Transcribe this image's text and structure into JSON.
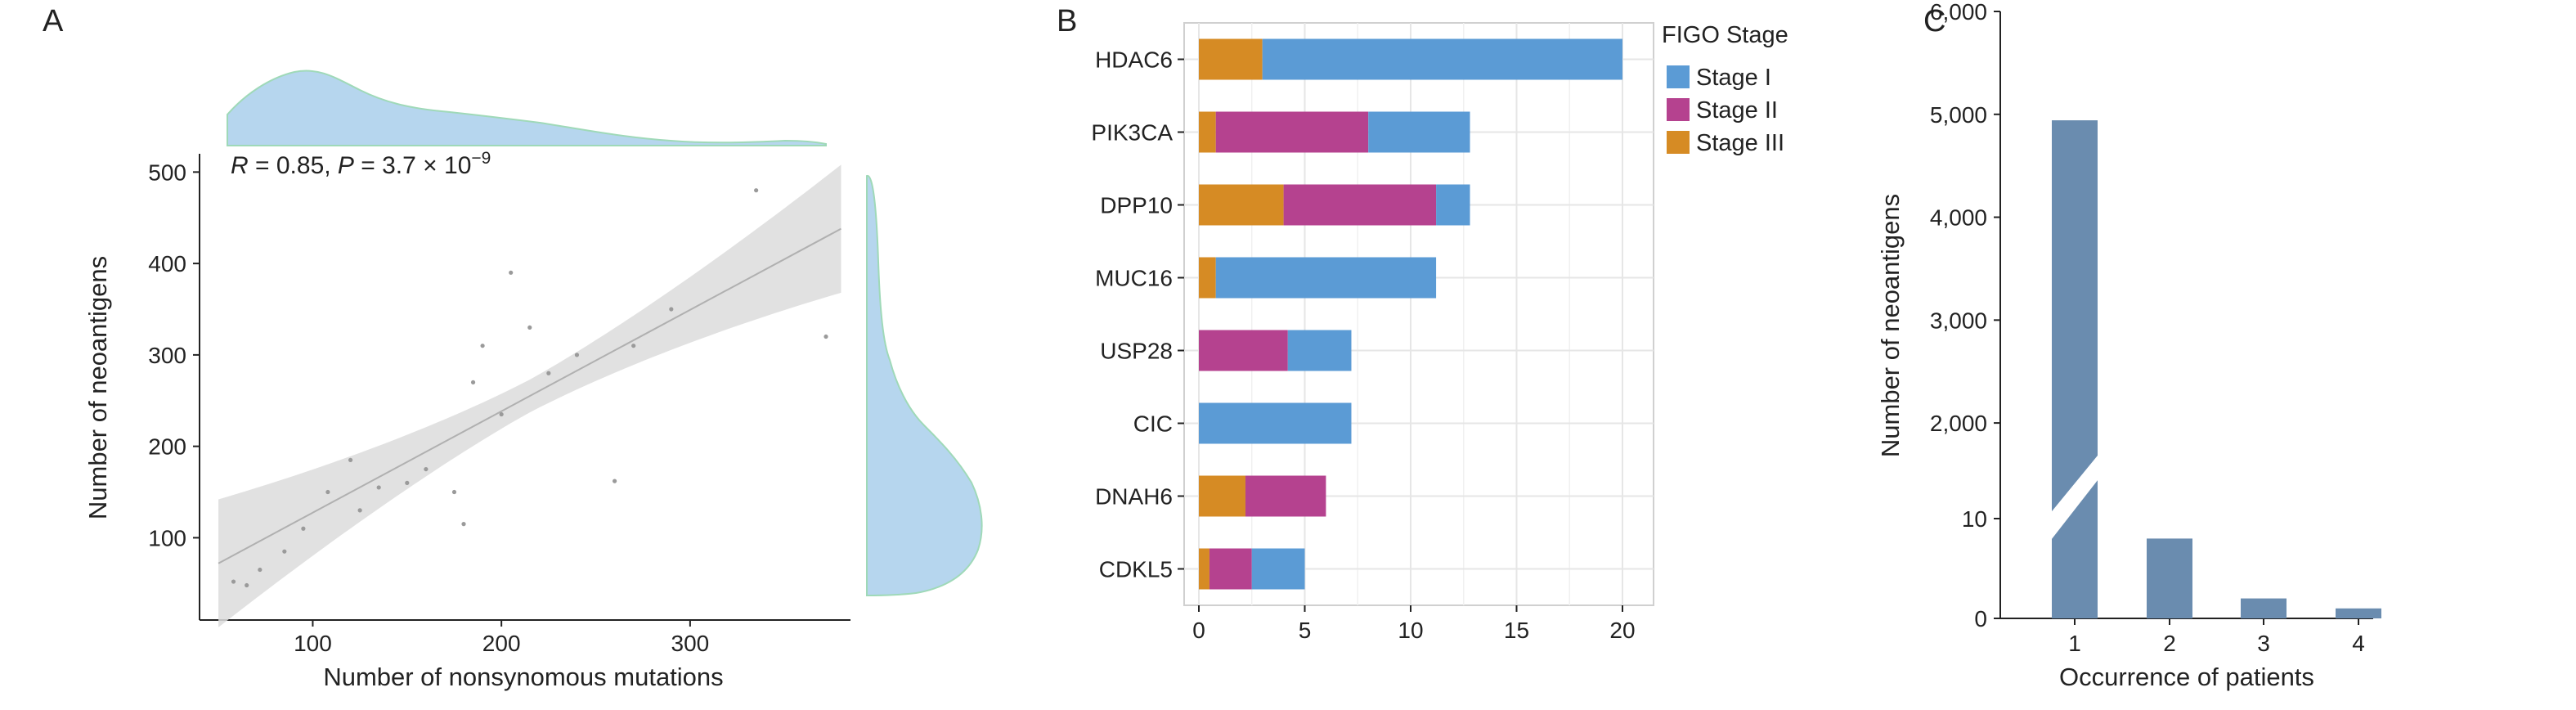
{
  "panels": {
    "a": "A",
    "b": "B",
    "c": "C"
  },
  "colors": {
    "density_fill": "#b6d6ee",
    "density_edge": "#9fd9b8",
    "ci_band": "#dcdcdc",
    "fit_line": "#b0b0b0",
    "point": "#9a9a9a",
    "stage1": "#5b9bd5",
    "stage2": "#b5428f",
    "stage3": "#d68b24",
    "bar_c": "#6a8caf"
  },
  "chart_data": [
    {
      "type": "scatter",
      "panel": "A",
      "xlabel": "Number of nonsynomous mutations",
      "ylabel": "Number of neoantigens",
      "xticks": [
        100,
        200,
        300
      ],
      "yticks": [
        100,
        200,
        300,
        400,
        500
      ],
      "xlim": [
        40,
        385
      ],
      "ylim": [
        10,
        520
      ],
      "annotation": {
        "r_label": "R",
        "r_value": " = 0.85, ",
        "p_label": "P",
        "p_value": " = 3.7 × 10",
        "p_exp": "−9"
      },
      "fit": {
        "x0": 50,
        "y0": 72,
        "x1": 380,
        "y1": 438
      },
      "points": [
        {
          "x": 58,
          "y": 52
        },
        {
          "x": 65,
          "y": 48
        },
        {
          "x": 72,
          "y": 65
        },
        {
          "x": 85,
          "y": 85
        },
        {
          "x": 95,
          "y": 110
        },
        {
          "x": 108,
          "y": 150
        },
        {
          "x": 120,
          "y": 185
        },
        {
          "x": 125,
          "y": 130
        },
        {
          "x": 135,
          "y": 155
        },
        {
          "x": 150,
          "y": 160
        },
        {
          "x": 160,
          "y": 175
        },
        {
          "x": 175,
          "y": 150
        },
        {
          "x": 180,
          "y": 115
        },
        {
          "x": 185,
          "y": 270
        },
        {
          "x": 190,
          "y": 310
        },
        {
          "x": 200,
          "y": 235
        },
        {
          "x": 205,
          "y": 390
        },
        {
          "x": 215,
          "y": 330
        },
        {
          "x": 225,
          "y": 280
        },
        {
          "x": 240,
          "y": 300
        },
        {
          "x": 260,
          "y": 162
        },
        {
          "x": 270,
          "y": 310
        },
        {
          "x": 290,
          "y": 350
        },
        {
          "x": 335,
          "y": 480
        },
        {
          "x": 372,
          "y": 320
        }
      ]
    },
    {
      "type": "bar",
      "panel": "B",
      "orientation": "horizontal",
      "stacked": true,
      "categories": [
        "HDAC6",
        "PIK3CA",
        "DPP10",
        "MUC16",
        "USP28",
        "CIC",
        "DNAH6",
        "CDKL5"
      ],
      "xticks": [
        0,
        5,
        10,
        15,
        20
      ],
      "xlim": [
        0,
        20.8
      ],
      "legend_title": "FIGO Stage",
      "series": [
        {
          "name": "Stage III",
          "values": [
            3,
            0.8,
            4,
            0.8,
            0,
            0,
            2.2,
            0.5
          ]
        },
        {
          "name": "Stage II",
          "values": [
            0,
            7.2,
            7.2,
            0,
            4.2,
            0,
            3.8,
            2
          ]
        },
        {
          "name": "Stage I",
          "values": [
            17,
            4.8,
            1.6,
            10.4,
            3,
            7.2,
            0,
            2.5
          ]
        }
      ],
      "legend_order": [
        "Stage I",
        "Stage II",
        "Stage III"
      ]
    },
    {
      "type": "bar",
      "panel": "C",
      "broken_axis": true,
      "xlabel": "Occurrence of patients",
      "ylabel": "Number of neoantigens",
      "categories": [
        "1",
        "2",
        "3",
        "4"
      ],
      "values": [
        4942,
        8,
        2,
        1
      ],
      "yticks_lower": [
        "0",
        "10"
      ],
      "yticks_upper": [
        "2,000",
        "3,000",
        "4,000",
        "5,000",
        "6,000"
      ],
      "lower_range": [
        0,
        10
      ],
      "upper_range": [
        1500,
        6000
      ]
    }
  ]
}
